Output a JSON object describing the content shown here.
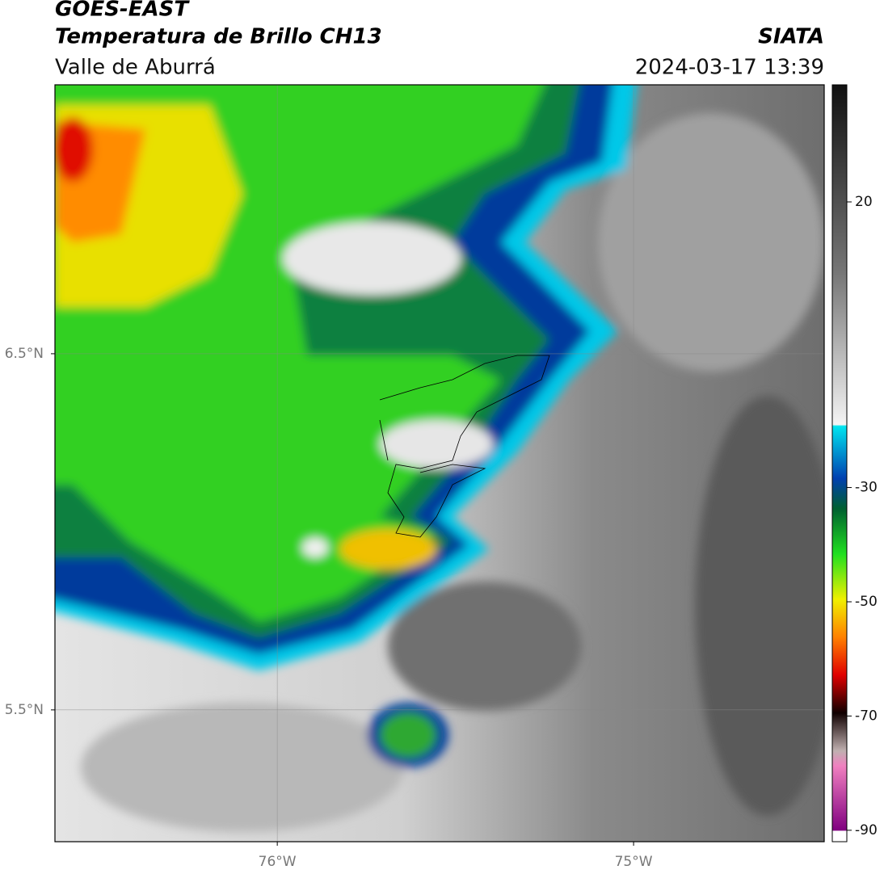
{
  "header": {
    "satellite": "GOES-EAST",
    "product": "Temperatura de Brillo CH13",
    "region": "Valle de Aburrá",
    "agency": "SIATA",
    "datetime": "2024-03-17 13:39"
  },
  "map": {
    "xlim": [
      -76.624,
      -74.465
    ],
    "ylim": [
      5.13,
      7.255
    ],
    "xticks": [
      {
        "value": -76,
        "label": "76°W"
      },
      {
        "value": -75,
        "label": "75°W"
      }
    ],
    "yticks": [
      {
        "value": 6.5,
        "label": "6.5°N"
      },
      {
        "value": 5.5,
        "label": "5.5°N"
      }
    ],
    "grid": true
  },
  "colorbar": {
    "lim": [
      -92,
      40.5
    ],
    "ticks": [
      20,
      -30,
      -50,
      -70,
      -90
    ]
  }
}
